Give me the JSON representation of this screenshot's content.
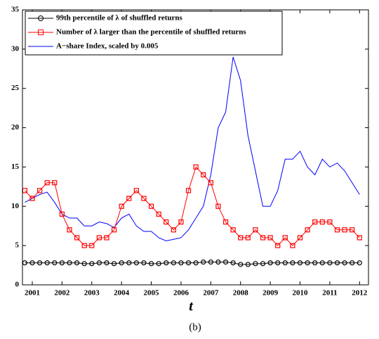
{
  "chart_data": {
    "type": "line",
    "xlabel": "t",
    "caption": "(b)",
    "x": [
      2000.75,
      2001.0,
      2001.25,
      2001.5,
      2001.75,
      2002.0,
      2002.25,
      2002.5,
      2002.75,
      2003.0,
      2003.25,
      2003.5,
      2003.75,
      2004.0,
      2004.25,
      2004.5,
      2004.75,
      2005.0,
      2005.25,
      2005.5,
      2005.75,
      2006.0,
      2006.25,
      2006.5,
      2006.75,
      2007.0,
      2007.25,
      2007.5,
      2007.75,
      2008.0,
      2008.25,
      2008.5,
      2008.75,
      2009.0,
      2009.25,
      2009.5,
      2009.75,
      2010.0,
      2010.25,
      2010.5,
      2010.75,
      2011.0,
      2011.25,
      2011.5,
      2011.75,
      2012.0
    ],
    "series": [
      {
        "name": "99th percentile of λ of shuffled returns",
        "color": "#000000",
        "marker": "circle",
        "values": [
          2.8,
          2.8,
          2.8,
          2.8,
          2.8,
          2.8,
          2.8,
          2.8,
          2.7,
          2.7,
          2.8,
          2.8,
          2.7,
          2.8,
          2.8,
          2.8,
          2.8,
          2.7,
          2.7,
          2.8,
          2.8,
          2.8,
          2.8,
          2.8,
          2.9,
          2.9,
          2.9,
          2.9,
          2.8,
          2.6,
          2.6,
          2.7,
          2.7,
          2.8,
          2.8,
          2.8,
          2.8,
          2.8,
          2.8,
          2.8,
          2.8,
          2.8,
          2.8,
          2.8,
          2.8,
          2.8
        ]
      },
      {
        "name": "Number of λ larger than the percentile of shuffled returns",
        "color": "#ff0000",
        "marker": "square",
        "values": [
          12,
          11,
          12,
          13,
          13,
          9,
          7,
          6,
          5,
          5,
          6,
          6,
          7,
          10,
          11,
          12,
          11,
          10,
          9,
          8,
          7,
          8,
          12,
          15,
          14,
          13,
          10,
          8,
          7,
          6,
          6,
          7,
          6,
          6,
          5,
          6,
          5,
          6,
          7,
          8,
          8,
          8,
          7,
          7,
          7,
          6
        ]
      },
      {
        "name": "A−share Index, scaled by 0.005",
        "color": "#0000ff",
        "marker": "none",
        "values": [
          10.5,
          11,
          11.5,
          11.8,
          10.5,
          9,
          8.5,
          8.5,
          7.5,
          7.5,
          8,
          7.8,
          7.3,
          8.5,
          9,
          7.5,
          6.8,
          6.8,
          6,
          5.6,
          5.8,
          6,
          7,
          8.5,
          10,
          14,
          20,
          22,
          29,
          26,
          19,
          14.5,
          10,
          10,
          12,
          16,
          16,
          17,
          15,
          14,
          16,
          15,
          15.5,
          14.5,
          13,
          11.5
        ]
      }
    ],
    "xlim": [
      2000.67,
      2012.3
    ],
    "xticks": [
      2001,
      2002,
      2003,
      2004,
      2005,
      2006,
      2007,
      2008,
      2009,
      2010,
      2011,
      2012
    ],
    "ylim": [
      0,
      35
    ],
    "yticks": [
      0,
      5,
      10,
      15,
      20,
      25,
      30,
      35
    ],
    "legend": "upper left"
  }
}
